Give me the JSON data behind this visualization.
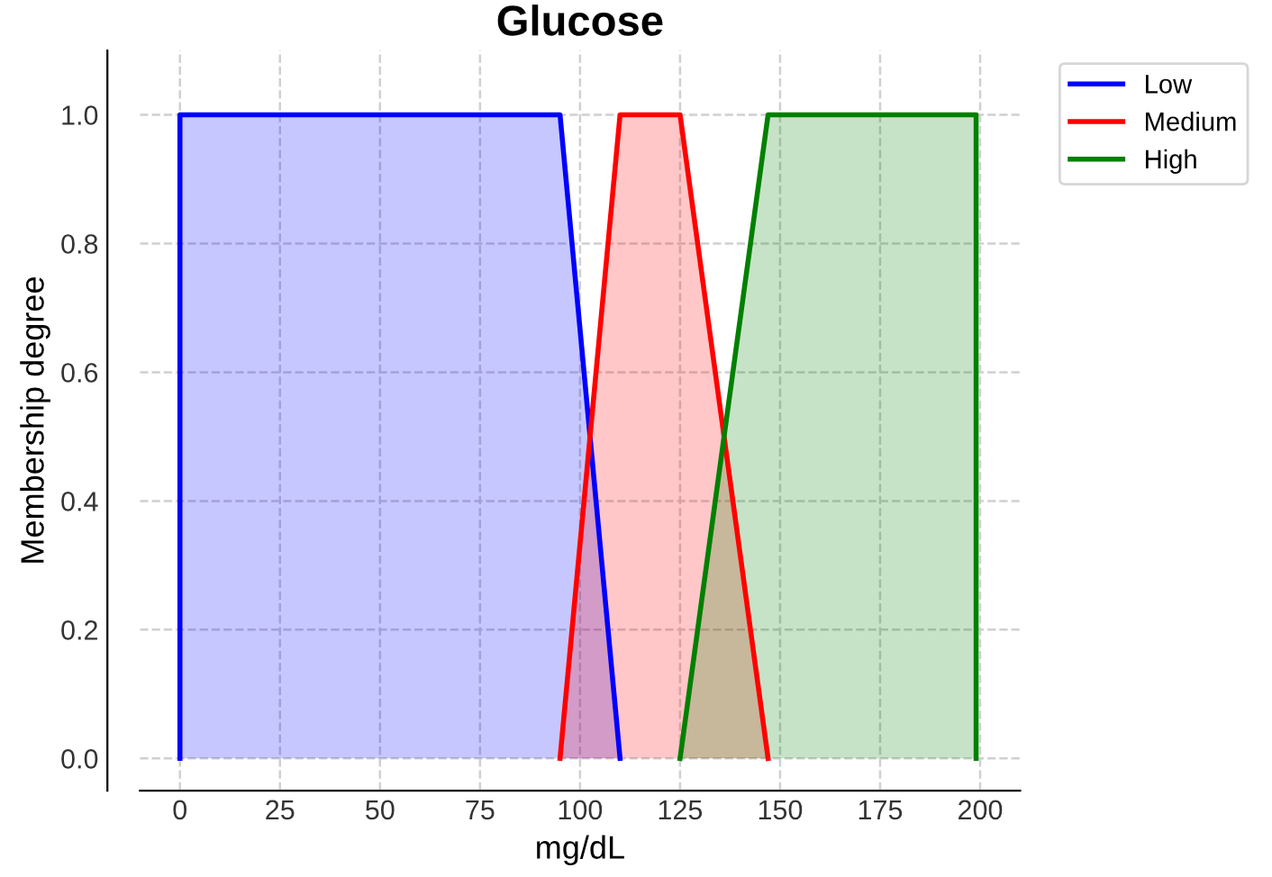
{
  "chart_data": {
    "type": "area",
    "title": "Glucose",
    "xlabel": "mg/dL",
    "ylabel": "Membership degree",
    "xlim": [
      -10,
      210
    ],
    "xticks": [
      0,
      25,
      50,
      75,
      100,
      125,
      150,
      175,
      200
    ],
    "ylim": [
      -0.05,
      1.1
    ],
    "yticks": [
      {
        "value": 0,
        "label": "0.0"
      },
      0.2,
      0.4,
      0.6,
      0.8,
      {
        "value": 1,
        "label": "1.0"
      }
    ],
    "grid": true,
    "legend": "top right",
    "line_style": "solid",
    "marker": "none",
    "series": [
      {
        "name": "Low",
        "color": "#0000ff",
        "x": [
          0,
          0,
          95,
          110
        ],
        "values": [
          0,
          1,
          1,
          0
        ]
      },
      {
        "name": "Medium",
        "color": "#ff0000",
        "x": [
          95,
          110,
          125,
          147
        ],
        "values": [
          0,
          1,
          1,
          0
        ]
      },
      {
        "name": "High",
        "color": "#008000",
        "x": [
          125,
          147,
          199,
          199
        ],
        "values": [
          0,
          1,
          1,
          0
        ]
      }
    ]
  }
}
